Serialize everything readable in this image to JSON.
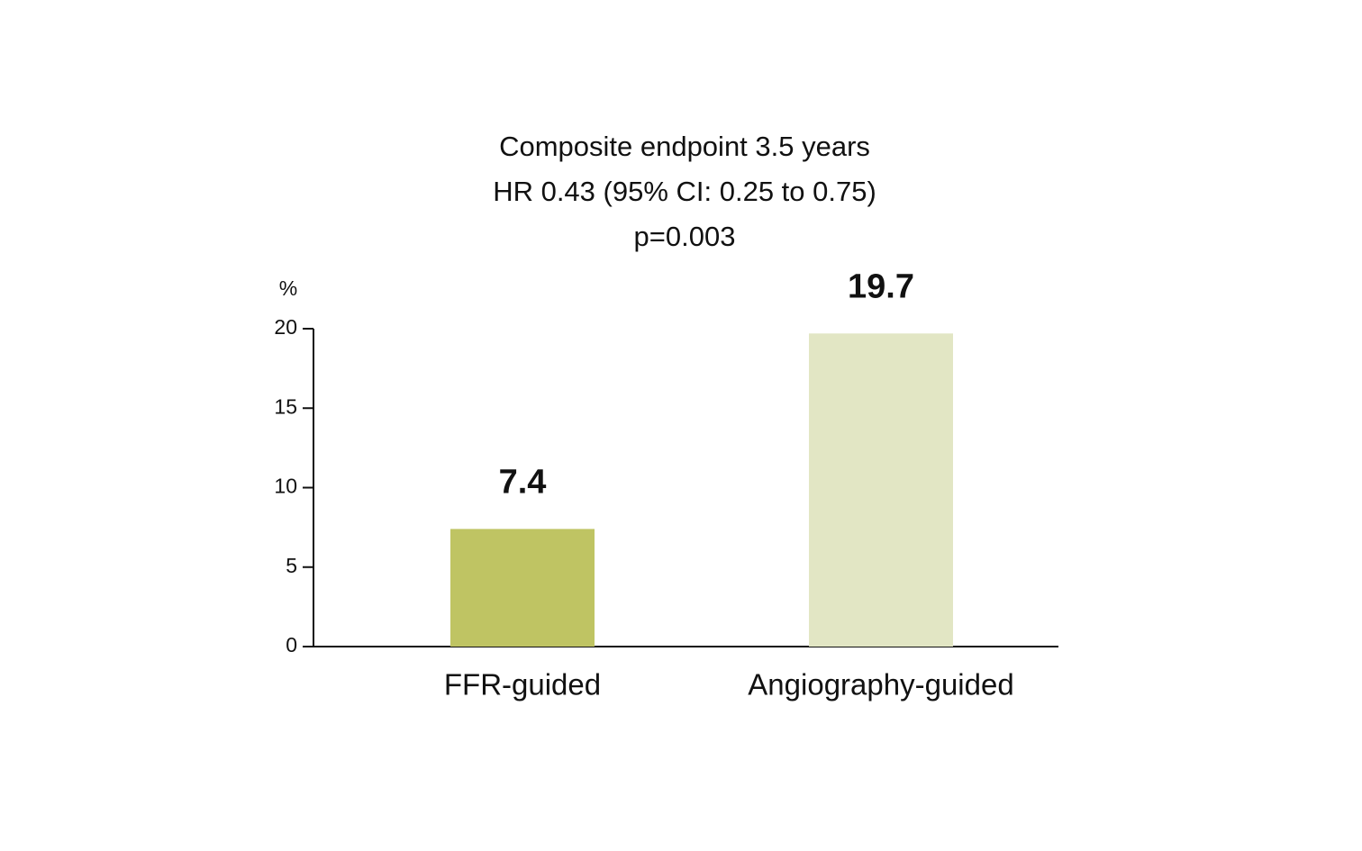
{
  "chart_data": {
    "type": "bar",
    "title": "Composite endpoint 3.5 years",
    "subtitle": [
      "HR 0.43 (95% CI: 0.25 to 0.75)",
      "p=0.003"
    ],
    "y_label": "%",
    "categories": [
      "FFR-guided",
      "Angiography-guided"
    ],
    "values": [
      7.4,
      19.7
    ],
    "colors": [
      "#bfc463",
      "#e2e6c4"
    ],
    "ylim": [
      0,
      20
    ],
    "yticks": [
      0,
      5,
      10,
      15,
      20
    ]
  }
}
